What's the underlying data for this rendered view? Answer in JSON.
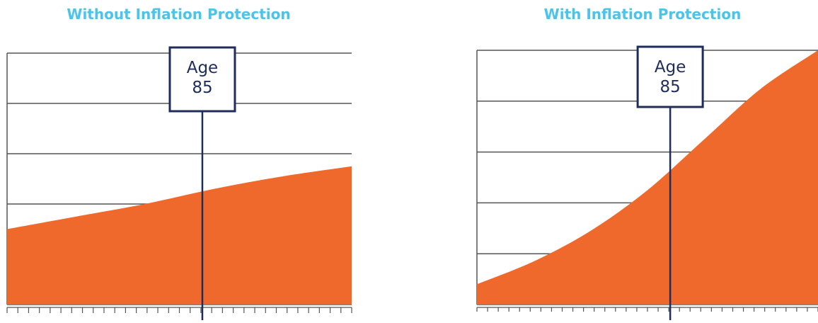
{
  "colors": {
    "title": "#4cc3e8",
    "area": "#f0692c",
    "grid": "#555555",
    "marker": "#1f2d5c"
  },
  "marker": {
    "line1": "Age",
    "line2": "85"
  },
  "chart_data": [
    {
      "type": "area",
      "title": "Without Inflation Protection",
      "x": [
        0,
        6,
        12,
        18,
        24,
        30
      ],
      "y": [
        30,
        35,
        40,
        46,
        51,
        55
      ],
      "ylim": [
        0,
        100
      ],
      "gridlines": [
        0,
        20,
        40,
        60,
        80,
        100
      ],
      "tick_count": 33,
      "marker_x": 17
    },
    {
      "type": "area",
      "title": "With Inflation Protection",
      "x": [
        0,
        5,
        10,
        15,
        20,
        25,
        30
      ],
      "y": [
        8,
        17,
        29,
        45,
        65,
        85,
        100
      ],
      "ylim": [
        0,
        100
      ],
      "gridlines": [
        0,
        20,
        40,
        60,
        80,
        100
      ],
      "tick_count": 33,
      "marker_x": 17
    }
  ]
}
